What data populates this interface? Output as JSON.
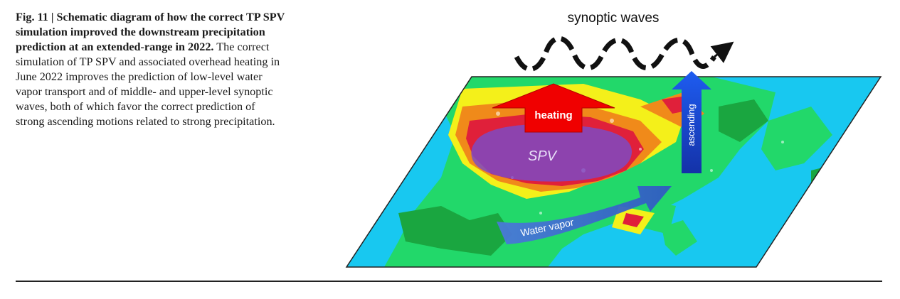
{
  "caption": {
    "figure_label": "Fig. 11 | Schematic diagram of how the correct TP SPV simulation improved the downstream precipitation prediction at an extended-range in 2022.",
    "body": "The correct simulation of TP SPV and associated overhead heating in June 2022 improves the prediction of low-level water vapor transport and of middle- and upper-level synoptic waves, both of which favor the correct prediction of strong ascending motions related to strong precipitation."
  },
  "figure": {
    "waves_label": "synoptic waves",
    "heating_label": "heating",
    "ascending_label": "ascending",
    "spv_label": "SPV",
    "vapor_label": "Water vapor",
    "colors": {
      "ocean": "#18c8f0",
      "land_green": "#22d86a",
      "land_dark_green": "#1aa640",
      "precip_yellow": "#f4f01a",
      "precip_orange": "#f08a1a",
      "precip_red": "#e0203a",
      "spv_purple": "#7a4cc8",
      "heating_red": "#f00000",
      "ascending_blue": "#1a4ed8",
      "vapor_blue": "#3a6ad0"
    }
  }
}
